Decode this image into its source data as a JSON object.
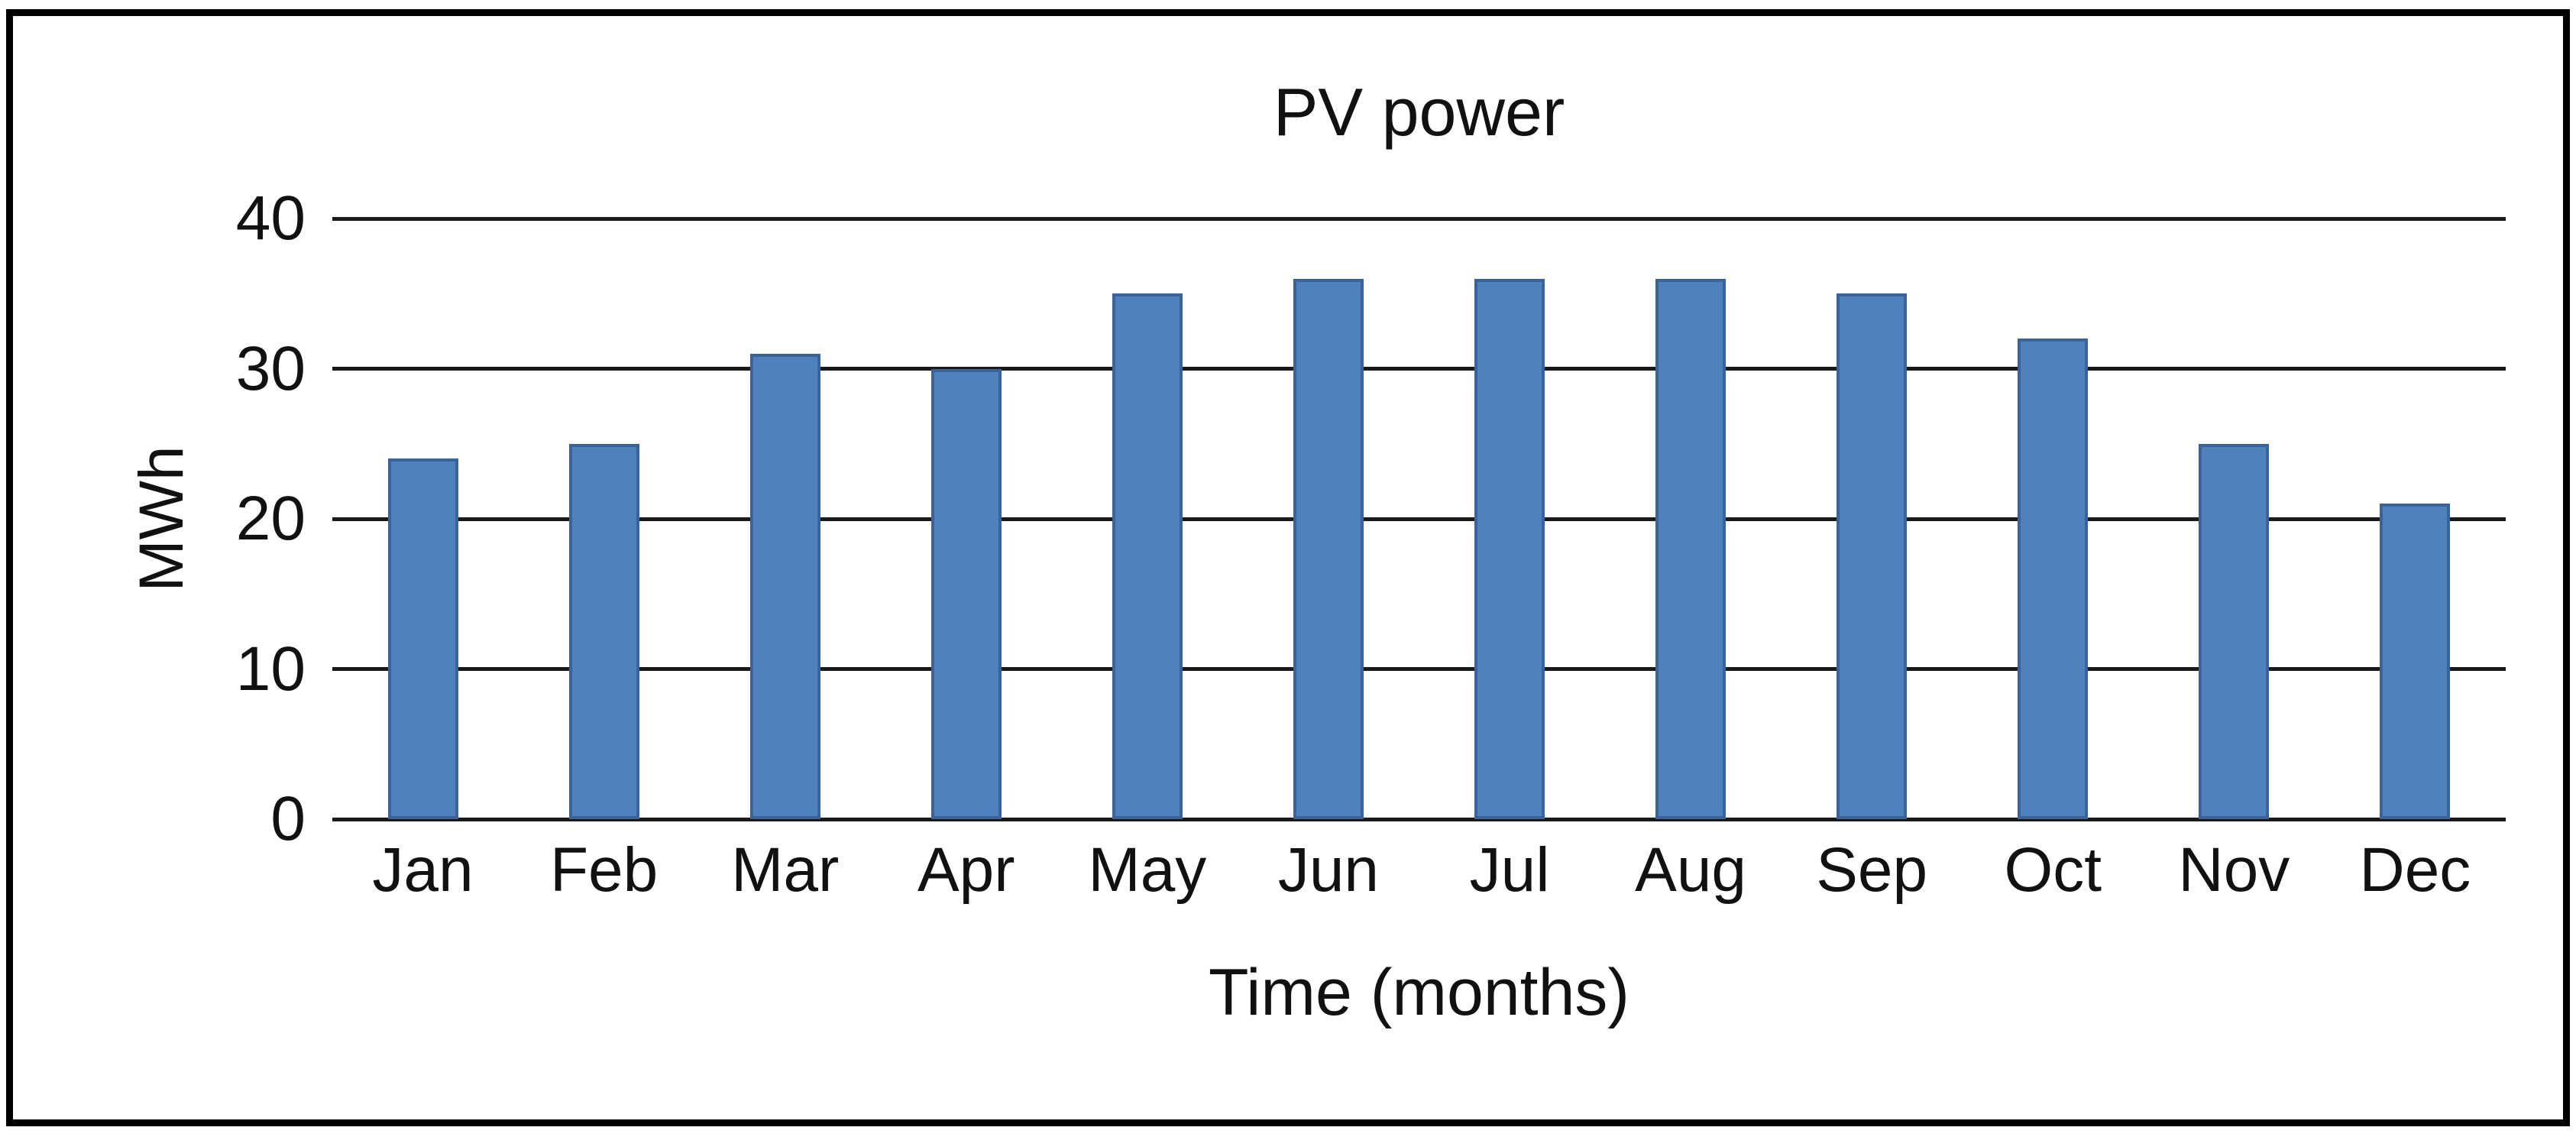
{
  "chart_data": {
    "type": "bar",
    "title": "PV power",
    "categories": [
      "Jan",
      "Feb",
      "Mar",
      "Apr",
      "May",
      "Jun",
      "Jul",
      "Aug",
      "Sep",
      "Oct",
      "Nov",
      "Dec"
    ],
    "values": [
      24,
      25,
      31,
      30,
      35,
      36,
      36,
      36,
      35,
      32,
      25,
      21
    ],
    "xlabel": "Time (months)",
    "ylabel": "MWh",
    "ylim": [
      0,
      40
    ],
    "yticks": [
      0,
      10,
      20,
      30,
      40
    ],
    "grid": "horizontal",
    "legend": "none",
    "bar_color": "#4F81BD",
    "bar_border_color": "#3A639B",
    "gridline_color": "#1a1a1a",
    "frame_color": "#000000",
    "background_color": "#ffffff",
    "text_color": "#111111"
  }
}
